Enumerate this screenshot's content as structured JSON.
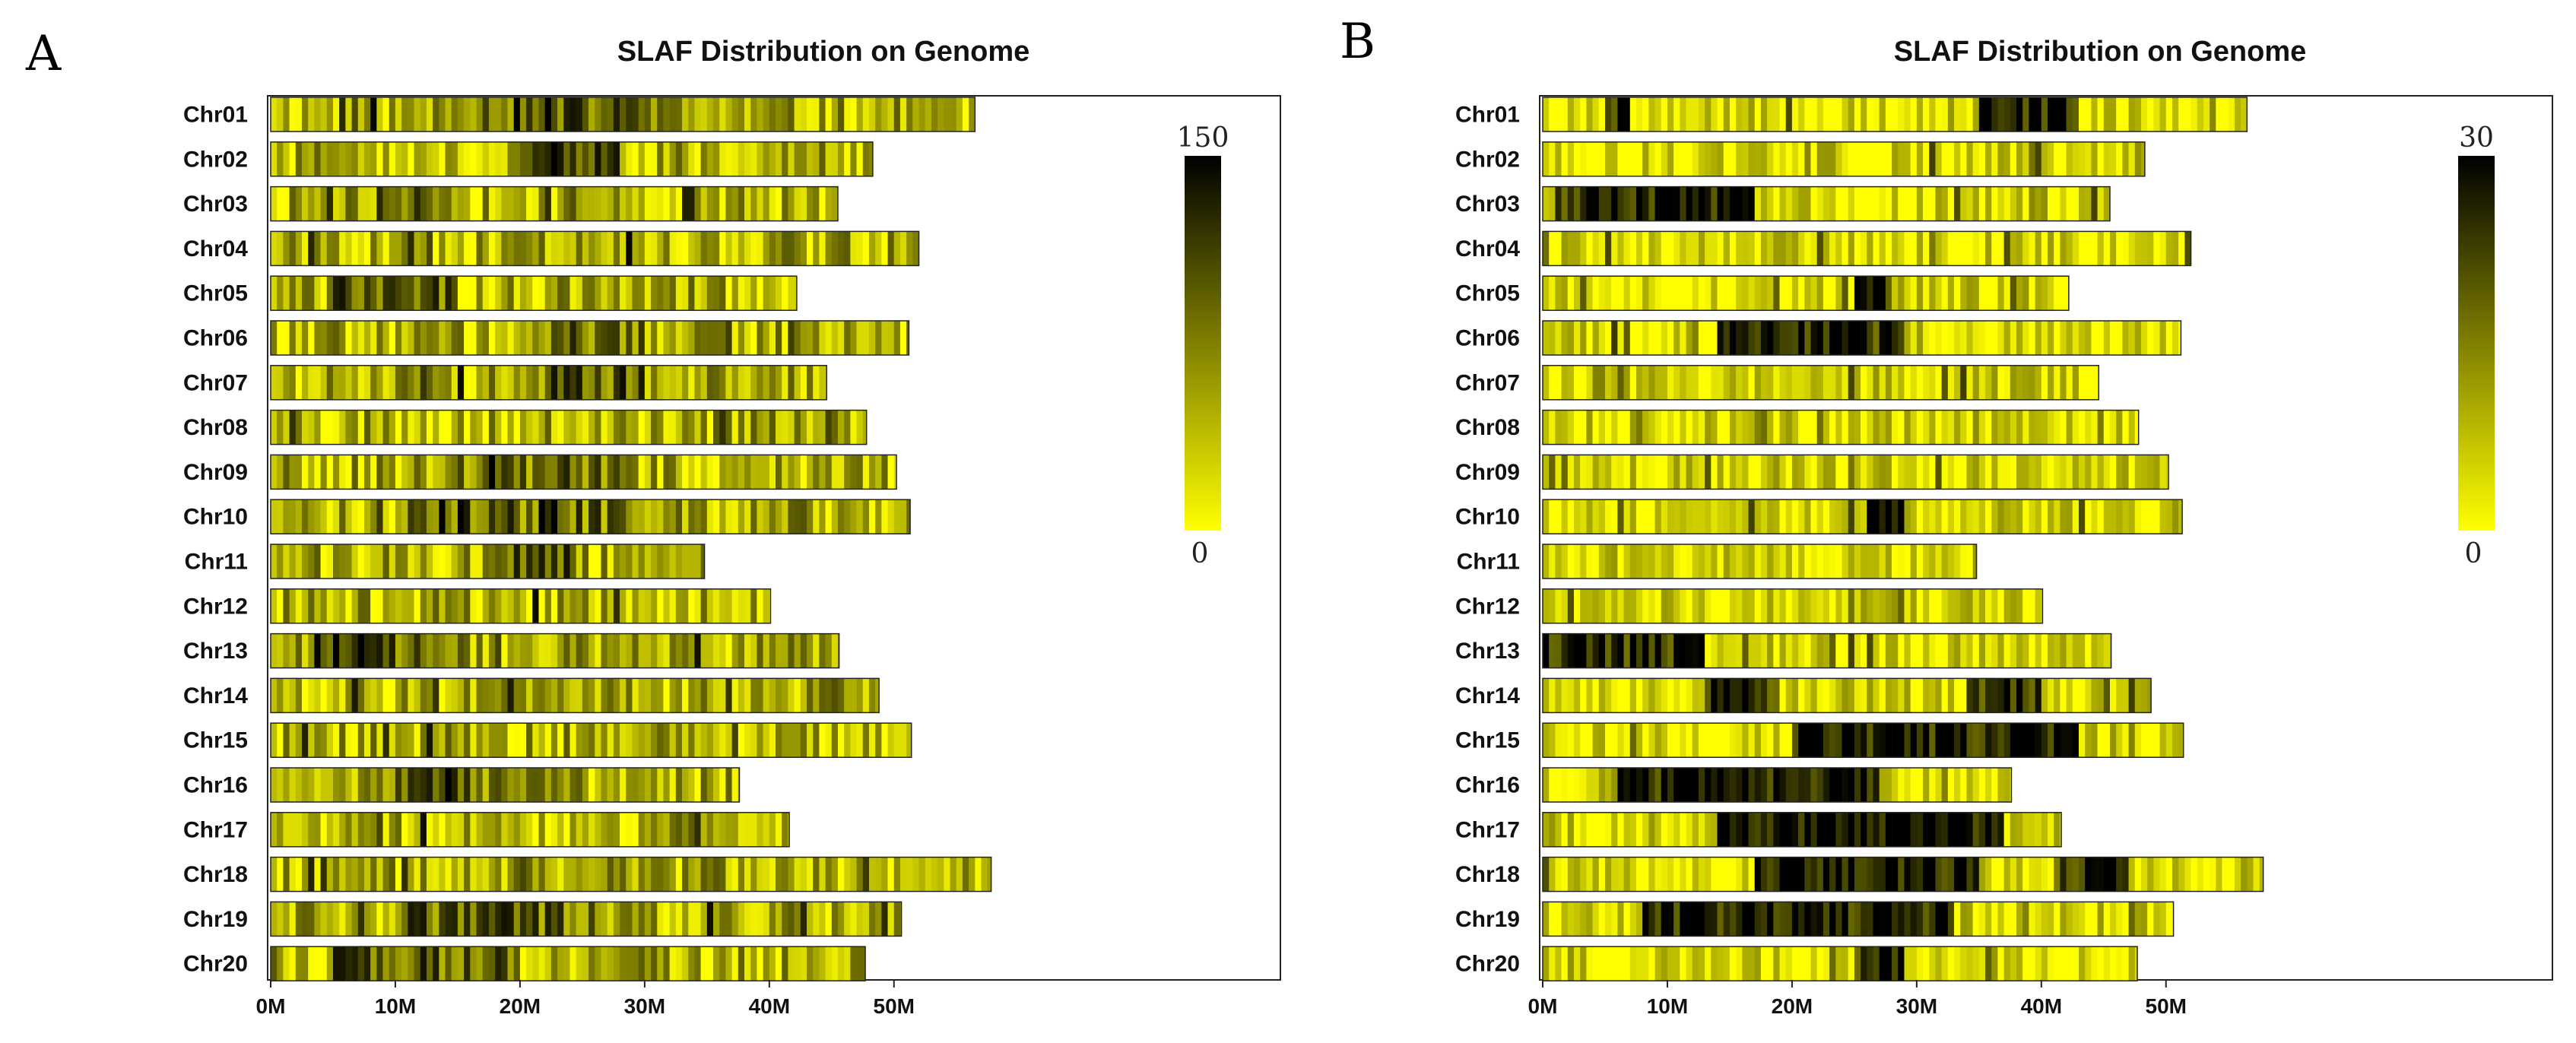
{
  "panels": [
    {
      "letter": "A"
    },
    {
      "letter": "B"
    }
  ],
  "chart_data": [
    {
      "type": "heatmap",
      "title": "SLAF Distribution on Genome",
      "xlabel": "",
      "ylabel": "",
      "xlim": [
        0,
        81
      ],
      "x_tick_labels": [
        "0M",
        "10M",
        "20M",
        "30M",
        "40M",
        "50M"
      ],
      "x_ticks": [
        0,
        10,
        20,
        30,
        40,
        50
      ],
      "colorbar": {
        "min": 0,
        "max": 150,
        "min_label": "0",
        "max_label": "150",
        "low_color": "#ffff00",
        "high_color": "#000000"
      },
      "chromosomes": [
        {
          "name": "Chr01",
          "length": 56.5
        },
        {
          "name": "Chr02",
          "length": 48.3
        },
        {
          "name": "Chr03",
          "length": 45.5
        },
        {
          "name": "Chr04",
          "length": 52.0
        },
        {
          "name": "Chr05",
          "length": 42.2
        },
        {
          "name": "Chr06",
          "length": 51.2
        },
        {
          "name": "Chr07",
          "length": 44.6
        },
        {
          "name": "Chr08",
          "length": 47.8
        },
        {
          "name": "Chr09",
          "length": 50.2
        },
        {
          "name": "Chr10",
          "length": 51.3
        },
        {
          "name": "Chr11",
          "length": 34.8
        },
        {
          "name": "Chr12",
          "length": 40.1
        },
        {
          "name": "Chr13",
          "length": 45.6
        },
        {
          "name": "Chr14",
          "length": 48.8
        },
        {
          "name": "Chr15",
          "length": 51.4
        },
        {
          "name": "Chr16",
          "length": 37.6
        },
        {
          "name": "Chr17",
          "length": 41.6
        },
        {
          "name": "Chr18",
          "length": 57.8
        },
        {
          "name": "Chr19",
          "length": 50.6
        },
        {
          "name": "Chr20",
          "length": 47.7
        }
      ],
      "density_profile": {
        "bin_size_M": 0.5,
        "baseline": 0.3,
        "variability": 0.35,
        "dense_regions": [
          {
            "chr": "Chr01",
            "start": 14,
            "end": 32,
            "level": 0.6
          },
          {
            "chr": "Chr02",
            "start": 19,
            "end": 28,
            "level": 0.65
          },
          {
            "chr": "Chr03",
            "start": 10,
            "end": 16,
            "level": 0.6
          },
          {
            "chr": "Chr05",
            "start": 5,
            "end": 15,
            "level": 0.6
          },
          {
            "chr": "Chr06",
            "start": 20,
            "end": 30,
            "level": 0.55
          },
          {
            "chr": "Chr07",
            "start": 22,
            "end": 30,
            "level": 0.6
          },
          {
            "chr": "Chr09",
            "start": 15,
            "end": 28,
            "level": 0.55
          },
          {
            "chr": "Chr10",
            "start": 10,
            "end": 30,
            "level": 0.55
          },
          {
            "chr": "Chr11",
            "start": 18,
            "end": 24,
            "level": 0.6
          },
          {
            "chr": "Chr13",
            "start": 3,
            "end": 10,
            "level": 0.7
          },
          {
            "chr": "Chr16",
            "start": 10,
            "end": 22,
            "level": 0.55
          },
          {
            "chr": "Chr19",
            "start": 10,
            "end": 25,
            "level": 0.6
          },
          {
            "chr": "Chr20",
            "start": 5,
            "end": 20,
            "level": 0.6
          }
        ]
      }
    },
    {
      "type": "heatmap",
      "title": "SLAF Distribution on Genome",
      "xlabel": "",
      "ylabel": "",
      "xlim": [
        0,
        81
      ],
      "x_tick_labels": [
        "0M",
        "10M",
        "20M",
        "30M",
        "40M",
        "50M"
      ],
      "x_ticks": [
        0,
        10,
        20,
        30,
        40,
        50
      ],
      "colorbar": {
        "min": 0,
        "max": 30,
        "min_label": "0",
        "max_label": "30",
        "low_color": "#ffff00",
        "high_color": "#000000"
      },
      "chromosomes": [
        {
          "name": "Chr01",
          "length": 56.5
        },
        {
          "name": "Chr02",
          "length": 48.3
        },
        {
          "name": "Chr03",
          "length": 45.5
        },
        {
          "name": "Chr04",
          "length": 52.0
        },
        {
          "name": "Chr05",
          "length": 42.2
        },
        {
          "name": "Chr06",
          "length": 51.2
        },
        {
          "name": "Chr07",
          "length": 44.6
        },
        {
          "name": "Chr08",
          "length": 47.8
        },
        {
          "name": "Chr09",
          "length": 50.2
        },
        {
          "name": "Chr10",
          "length": 51.3
        },
        {
          "name": "Chr11",
          "length": 34.8
        },
        {
          "name": "Chr12",
          "length": 40.1
        },
        {
          "name": "Chr13",
          "length": 45.6
        },
        {
          "name": "Chr14",
          "length": 48.8
        },
        {
          "name": "Chr15",
          "length": 51.4
        },
        {
          "name": "Chr16",
          "length": 37.6
        },
        {
          "name": "Chr17",
          "length": 41.6
        },
        {
          "name": "Chr18",
          "length": 57.8
        },
        {
          "name": "Chr19",
          "length": 50.6
        },
        {
          "name": "Chr20",
          "length": 47.7
        }
      ],
      "density_profile": {
        "bin_size_M": 0.5,
        "baseline": 0.12,
        "variability": 0.3,
        "dense_regions": [
          {
            "chr": "Chr01",
            "start": 5,
            "end": 7,
            "level": 0.9
          },
          {
            "chr": "Chr01",
            "start": 35,
            "end": 43,
            "level": 0.85
          },
          {
            "chr": "Chr03",
            "start": 1,
            "end": 17,
            "level": 0.85
          },
          {
            "chr": "Chr05",
            "start": 25,
            "end": 28,
            "level": 0.9
          },
          {
            "chr": "Chr06",
            "start": 14,
            "end": 29,
            "level": 0.8
          },
          {
            "chr": "Chr10",
            "start": 26,
            "end": 29,
            "level": 1.0
          },
          {
            "chr": "Chr13",
            "start": 0,
            "end": 13,
            "level": 0.85
          },
          {
            "chr": "Chr14",
            "start": 13,
            "end": 19,
            "level": 0.85
          },
          {
            "chr": "Chr14",
            "start": 34,
            "end": 40,
            "level": 0.85
          },
          {
            "chr": "Chr15",
            "start": 20,
            "end": 43,
            "level": 0.9
          },
          {
            "chr": "Chr16",
            "start": 6,
            "end": 27,
            "level": 0.9
          },
          {
            "chr": "Chr17",
            "start": 14,
            "end": 37,
            "level": 0.95
          },
          {
            "chr": "Chr18",
            "start": 17,
            "end": 35,
            "level": 0.9
          },
          {
            "chr": "Chr18",
            "start": 41,
            "end": 47,
            "level": 0.8
          },
          {
            "chr": "Chr19",
            "start": 8,
            "end": 33,
            "level": 0.9
          },
          {
            "chr": "Chr20",
            "start": 25,
            "end": 29,
            "level": 0.85
          }
        ]
      }
    }
  ]
}
